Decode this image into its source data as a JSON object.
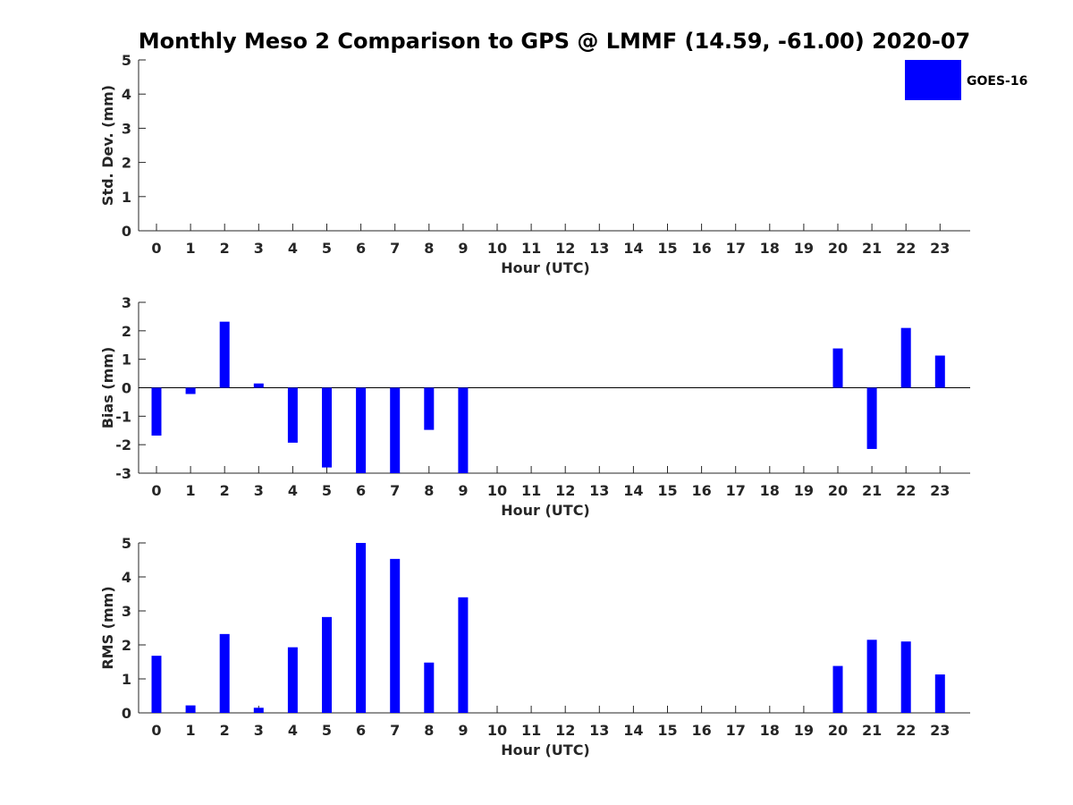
{
  "chart_data": {
    "title": "Monthly Meso 2 Comparison to GPS @ LMMF (14.59, -61.00) 2020-07",
    "type": "bar",
    "bar_color": "#0000ff",
    "legend": {
      "label": "GOES-16",
      "placement": "top-right",
      "color": "#0000ff"
    },
    "categories": [
      "0",
      "1",
      "2",
      "3",
      "4",
      "5",
      "6",
      "7",
      "8",
      "9",
      "10",
      "11",
      "12",
      "13",
      "14",
      "15",
      "16",
      "17",
      "18",
      "19",
      "20",
      "21",
      "22",
      "23"
    ],
    "panels": [
      {
        "ylabel": "Std. Dev. (mm)",
        "xlabel": "Hour (UTC)",
        "ylim": [
          0,
          5
        ],
        "yticks": [
          0,
          1,
          2,
          3,
          4,
          5
        ],
        "values": [
          null,
          null,
          null,
          null,
          null,
          null,
          null,
          null,
          null,
          null,
          null,
          null,
          null,
          null,
          null,
          null,
          null,
          null,
          null,
          null,
          null,
          null,
          null,
          null
        ]
      },
      {
        "ylabel": "Bias (mm)",
        "xlabel": "Hour (UTC)",
        "ylim": [
          -3,
          3
        ],
        "yticks": [
          -3,
          -2,
          -1,
          0,
          1,
          2,
          3
        ],
        "zero_line": true,
        "values": [
          -1.68,
          -0.22,
          2.32,
          0.15,
          -1.93,
          -2.8,
          -3.0,
          -3.0,
          -1.48,
          -3.0,
          null,
          null,
          null,
          null,
          null,
          null,
          null,
          null,
          null,
          null,
          1.38,
          -2.15,
          2.1,
          1.13
        ]
      },
      {
        "ylabel": "RMS (mm)",
        "xlabel": "Hour (UTC)",
        "ylim": [
          0,
          5
        ],
        "yticks": [
          0,
          1,
          2,
          3,
          4,
          5
        ],
        "values": [
          1.68,
          0.22,
          2.32,
          0.15,
          1.93,
          2.82,
          5.0,
          4.53,
          1.48,
          3.4,
          null,
          null,
          null,
          null,
          null,
          null,
          null,
          null,
          null,
          null,
          1.38,
          2.15,
          2.1,
          1.13
        ]
      }
    ]
  }
}
